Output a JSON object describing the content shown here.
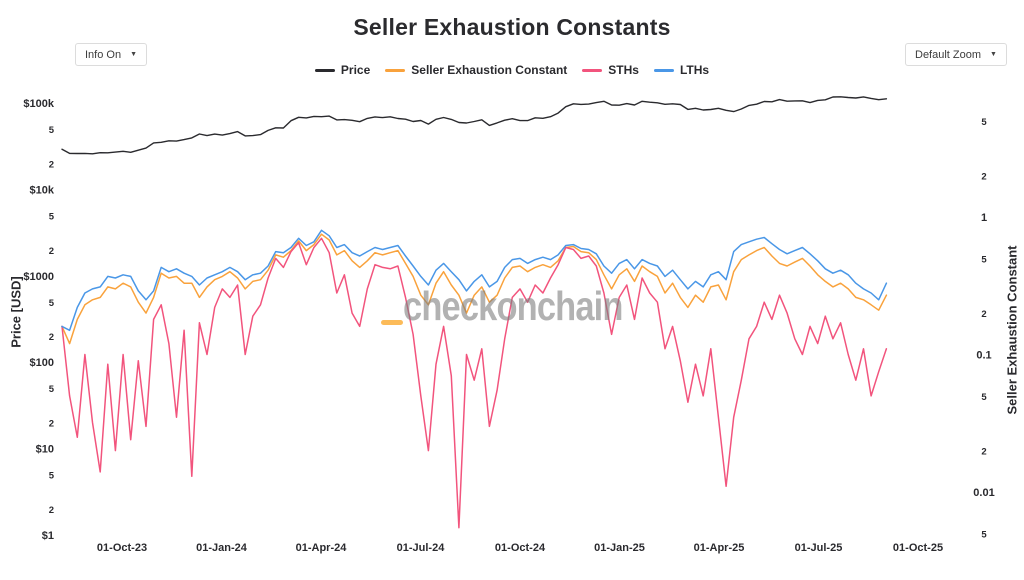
{
  "controls": {
    "info_dropdown": {
      "label": "Info On",
      "caret": "▼"
    },
    "zoom_dropdown": {
      "label": "Default Zoom",
      "caret": "▼"
    }
  },
  "watermark": {
    "text": "checkonchain"
  },
  "chart_data": {
    "type": "line",
    "title": "Seller Exhaustion Constants",
    "grid": false,
    "legend_position": "top-center",
    "x_start": "2023-08-07",
    "x_step_days": 7,
    "x_tick_labels": [
      "01-Oct-23",
      "01-Jan-24",
      "01-Apr-24",
      "01-Jul-24",
      "01-Oct-24",
      "01-Jan-25",
      "01-Apr-25",
      "01-Jul-25",
      "01-Oct-25"
    ],
    "y_left": {
      "label": "Price [USD]",
      "scale": "log",
      "range": [
        1,
        148000
      ],
      "ticks": [
        {
          "value": 100000,
          "label": "$100k",
          "major": true
        },
        {
          "value": 50000,
          "label": "5",
          "major": false
        },
        {
          "value": 20000,
          "label": "2",
          "major": false
        },
        {
          "value": 10000,
          "label": "$10k",
          "major": true
        },
        {
          "value": 5000,
          "label": "5",
          "major": false
        },
        {
          "value": 2000,
          "label": "2",
          "major": false
        },
        {
          "value": 1000,
          "label": "$1000",
          "major": true
        },
        {
          "value": 500,
          "label": "5",
          "major": false
        },
        {
          "value": 200,
          "label": "2",
          "major": false
        },
        {
          "value": 100,
          "label": "$100",
          "major": true
        },
        {
          "value": 50,
          "label": "5",
          "major": false
        },
        {
          "value": 20,
          "label": "2",
          "major": false
        },
        {
          "value": 10,
          "label": "$10",
          "major": true
        },
        {
          "value": 5,
          "label": "5",
          "major": false
        },
        {
          "value": 2,
          "label": "2",
          "major": false
        },
        {
          "value": 1,
          "label": "$1",
          "major": true
        }
      ]
    },
    "y_right": {
      "label": "Seller Exhaustion Constant",
      "scale": "log",
      "range": [
        0.0045,
        8.5
      ],
      "ticks": [
        {
          "value": 5,
          "label": "5",
          "major": false
        },
        {
          "value": 2,
          "label": "2",
          "major": false
        },
        {
          "value": 1,
          "label": "1",
          "major": true
        },
        {
          "value": 0.5,
          "label": "5",
          "major": false
        },
        {
          "value": 0.2,
          "label": "2",
          "major": false
        },
        {
          "value": 0.1,
          "label": "0.1",
          "major": true
        },
        {
          "value": 0.05,
          "label": "5",
          "major": false
        },
        {
          "value": 0.02,
          "label": "2",
          "major": false
        },
        {
          "value": 0.01,
          "label": "0.01",
          "major": true
        },
        {
          "value": 0.005,
          "label": "5",
          "major": false
        }
      ]
    },
    "series": [
      {
        "name": "Price",
        "color": "#2a2a2e",
        "y_axis": "left",
        "values": [
          29200,
          26100,
          26000,
          26100,
          25800,
          26600,
          26500,
          27000,
          27600,
          26900,
          28400,
          30100,
          34500,
          35100,
          36500,
          36200,
          37700,
          39500,
          43800,
          41900,
          43700,
          42500,
          44200,
          46700,
          41600,
          42000,
          43100,
          48200,
          51600,
          51300,
          62400,
          68300,
          67200,
          69900,
          69400,
          70600,
          63800,
          64300,
          63100,
          60800,
          66300,
          69000,
          67800,
          69300,
          66200,
          64900,
          61000,
          62700,
          57000,
          64800,
          67900,
          64600,
          59400,
          58700,
          61000,
          63900,
          55000,
          58900,
          63200,
          65800,
          62500,
          62600,
          67400,
          66600,
          69400,
          76500,
          90500,
          97900,
          96400,
          97200,
          101100,
          104500,
          94900,
          94300,
          98300,
          94700,
          104500,
          102100,
          100600,
          96500,
          97800,
          96100,
          84300,
          86800,
          82900,
          84000,
          86900,
          82300,
          79600,
          85200,
          93800,
          96900,
          104000,
          103200,
          109500,
          105000,
          105700,
          106100,
          101000,
          107300,
          108900,
          117400,
          118000,
          115900,
          114300,
          117500,
          113100,
          109200,
          111800
        ]
      },
      {
        "name": "Seller Exhaustion Constant",
        "color": "#f9a23c",
        "y_axis": "right",
        "values": [
          0.16,
          0.12,
          0.18,
          0.23,
          0.25,
          0.26,
          0.31,
          0.3,
          0.33,
          0.31,
          0.24,
          0.2,
          0.26,
          0.39,
          0.36,
          0.37,
          0.33,
          0.33,
          0.26,
          0.31,
          0.35,
          0.37,
          0.4,
          0.36,
          0.3,
          0.34,
          0.35,
          0.41,
          0.53,
          0.51,
          0.57,
          0.67,
          0.57,
          0.63,
          0.75,
          0.68,
          0.53,
          0.57,
          0.48,
          0.43,
          0.48,
          0.55,
          0.53,
          0.55,
          0.57,
          0.46,
          0.37,
          0.27,
          0.23,
          0.33,
          0.4,
          0.32,
          0.27,
          0.2,
          0.27,
          0.31,
          0.24,
          0.27,
          0.36,
          0.43,
          0.44,
          0.4,
          0.43,
          0.45,
          0.43,
          0.48,
          0.6,
          0.61,
          0.56,
          0.55,
          0.49,
          0.38,
          0.3,
          0.38,
          0.42,
          0.34,
          0.44,
          0.4,
          0.37,
          0.28,
          0.33,
          0.26,
          0.22,
          0.27,
          0.24,
          0.31,
          0.32,
          0.25,
          0.4,
          0.49,
          0.53,
          0.57,
          0.6,
          0.52,
          0.46,
          0.44,
          0.47,
          0.5,
          0.44,
          0.38,
          0.34,
          0.31,
          0.33,
          0.3,
          0.26,
          0.25,
          0.23,
          0.21,
          0.27
        ]
      },
      {
        "name": "STHs",
        "color": "#f2547d",
        "y_axis": "right",
        "values": [
          0.16,
          0.05,
          0.025,
          0.1,
          0.032,
          0.014,
          0.085,
          0.02,
          0.1,
          0.024,
          0.09,
          0.03,
          0.18,
          0.23,
          0.12,
          0.035,
          0.15,
          0.013,
          0.17,
          0.1,
          0.22,
          0.3,
          0.26,
          0.32,
          0.1,
          0.19,
          0.23,
          0.36,
          0.5,
          0.43,
          0.56,
          0.65,
          0.45,
          0.6,
          0.7,
          0.55,
          0.28,
          0.38,
          0.2,
          0.16,
          0.3,
          0.45,
          0.43,
          0.42,
          0.44,
          0.26,
          0.14,
          0.05,
          0.02,
          0.085,
          0.16,
          0.07,
          0.0055,
          0.1,
          0.065,
          0.11,
          0.03,
          0.055,
          0.13,
          0.26,
          0.3,
          0.24,
          0.32,
          0.28,
          0.36,
          0.45,
          0.6,
          0.58,
          0.5,
          0.52,
          0.44,
          0.28,
          0.14,
          0.26,
          0.32,
          0.18,
          0.36,
          0.28,
          0.24,
          0.11,
          0.16,
          0.09,
          0.045,
          0.085,
          0.05,
          0.11,
          0.035,
          0.011,
          0.035,
          0.065,
          0.13,
          0.16,
          0.24,
          0.18,
          0.27,
          0.2,
          0.13,
          0.1,
          0.16,
          0.12,
          0.19,
          0.13,
          0.17,
          0.1,
          0.065,
          0.11,
          0.05,
          0.075,
          0.11
        ]
      },
      {
        "name": "LTHs",
        "color": "#4a97e7",
        "y_axis": "right",
        "values": [
          0.16,
          0.15,
          0.22,
          0.28,
          0.3,
          0.31,
          0.37,
          0.36,
          0.38,
          0.37,
          0.29,
          0.25,
          0.29,
          0.43,
          0.4,
          0.42,
          0.39,
          0.37,
          0.32,
          0.36,
          0.38,
          0.4,
          0.43,
          0.4,
          0.35,
          0.38,
          0.39,
          0.44,
          0.56,
          0.55,
          0.6,
          0.7,
          0.62,
          0.66,
          0.8,
          0.73,
          0.6,
          0.63,
          0.55,
          0.52,
          0.56,
          0.6,
          0.58,
          0.6,
          0.62,
          0.52,
          0.44,
          0.37,
          0.32,
          0.41,
          0.46,
          0.4,
          0.35,
          0.29,
          0.34,
          0.38,
          0.31,
          0.34,
          0.43,
          0.49,
          0.5,
          0.46,
          0.49,
          0.51,
          0.49,
          0.53,
          0.62,
          0.63,
          0.59,
          0.58,
          0.54,
          0.44,
          0.39,
          0.46,
          0.49,
          0.42,
          0.49,
          0.46,
          0.44,
          0.37,
          0.41,
          0.35,
          0.3,
          0.34,
          0.31,
          0.38,
          0.4,
          0.35,
          0.56,
          0.63,
          0.66,
          0.69,
          0.71,
          0.64,
          0.58,
          0.54,
          0.57,
          0.6,
          0.54,
          0.48,
          0.42,
          0.39,
          0.41,
          0.38,
          0.33,
          0.3,
          0.28,
          0.25,
          0.33
        ]
      }
    ]
  }
}
